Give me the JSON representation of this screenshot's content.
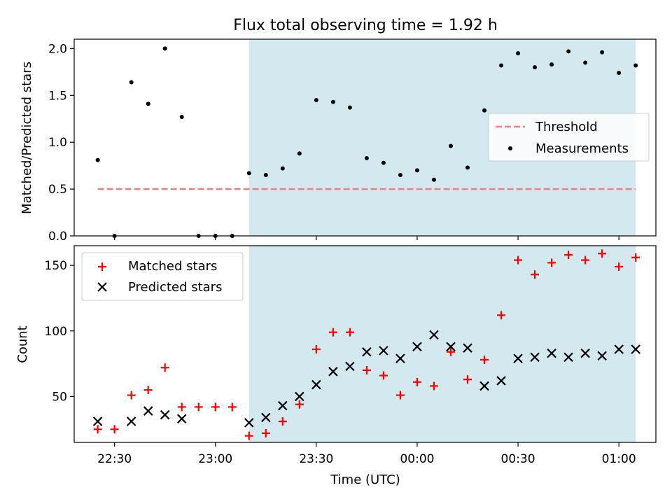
{
  "title": "Flux total observing time = 1.92 h",
  "chart_data": [
    {
      "type": "scatter",
      "panel": "top",
      "ylabel": "Matched/Predicted stars",
      "ylim": [
        0,
        2.1
      ],
      "yticks": [
        0.0,
        0.5,
        1.0,
        1.5,
        2.0
      ],
      "yticklabels": [
        "0.0",
        "0.5",
        "1.0",
        "1.5",
        "2.0"
      ],
      "shaded_x_range": [
        "23:10",
        "01:05"
      ],
      "shade_color": "#d3e9ef",
      "legend_position": "center-right",
      "series": [
        {
          "name": "Threshold",
          "kind": "dashed-line",
          "color": "#f08080",
          "x": [
            "22:25",
            "01:05"
          ],
          "y": [
            0.5,
            0.5
          ]
        },
        {
          "name": "Measurements",
          "kind": "points",
          "color": "#000000",
          "x": [
            "22:25",
            "22:30",
            "22:35",
            "22:40",
            "22:45",
            "22:50",
            "22:55",
            "23:00",
            "23:05",
            "23:10",
            "23:15",
            "23:20",
            "23:25",
            "23:30",
            "23:35",
            "23:40",
            "23:45",
            "23:50",
            "23:55",
            "00:00",
            "00:05",
            "00:10",
            "00:15",
            "00:20",
            "00:25",
            "00:30",
            "00:35",
            "00:40",
            "00:45",
            "00:50",
            "00:55",
            "01:00",
            "01:05"
          ],
          "y": [
            0.81,
            0.0,
            1.64,
            1.41,
            2.0,
            1.27,
            0.0,
            0.0,
            0.0,
            0.67,
            0.65,
            0.72,
            0.88,
            1.45,
            1.43,
            1.37,
            0.83,
            0.78,
            0.65,
            0.7,
            0.6,
            0.96,
            0.73,
            1.34,
            1.82,
            1.95,
            1.8,
            1.83,
            1.97,
            1.85,
            1.96,
            1.74,
            1.82
          ]
        }
      ]
    },
    {
      "type": "scatter",
      "panel": "bottom",
      "xlabel": "Time (UTC)",
      "ylabel": "Count",
      "ylim": [
        15,
        165
      ],
      "yticks": [
        50,
        100,
        150
      ],
      "yticklabels": [
        "50",
        "100",
        "150"
      ],
      "xlim": [
        "22:18",
        "01:11"
      ],
      "xticks": [
        "22:30",
        "23:00",
        "23:30",
        "00:00",
        "00:30",
        "01:00"
      ],
      "xticklabels": [
        "22:30",
        "23:00",
        "23:30",
        "00:00",
        "00:30",
        "01:00"
      ],
      "shaded_x_range": [
        "23:10",
        "01:05"
      ],
      "shade_color": "#d3e9ef",
      "legend_position": "upper-left",
      "series": [
        {
          "name": "Matched stars",
          "marker": "plus",
          "color": "#ff0000",
          "x": [
            "22:25",
            "22:30",
            "22:35",
            "22:40",
            "22:45",
            "22:50",
            "22:55",
            "23:00",
            "23:05",
            "23:10",
            "23:15",
            "23:20",
            "23:25",
            "23:30",
            "23:35",
            "23:40",
            "23:45",
            "23:50",
            "23:55",
            "00:00",
            "00:05",
            "00:10",
            "00:15",
            "00:20",
            "00:25",
            "00:30",
            "00:35",
            "00:40",
            "00:45",
            "00:50",
            "00:55",
            "01:00",
            "01:05"
          ],
          "y": [
            25,
            25,
            51,
            55,
            72,
            42,
            42,
            42,
            42,
            20,
            22,
            31,
            44,
            86,
            99,
            99,
            70,
            66,
            51,
            61,
            58,
            84,
            63,
            78,
            112,
            154,
            143,
            152,
            158,
            154,
            159,
            149,
            156
          ]
        },
        {
          "name": "Predicted stars",
          "marker": "x",
          "color": "#000000",
          "x": [
            "22:25",
            "22:35",
            "22:40",
            "22:45",
            "22:50",
            "23:10",
            "23:15",
            "23:20",
            "23:25",
            "23:30",
            "23:35",
            "23:40",
            "23:45",
            "23:50",
            "23:55",
            "00:00",
            "00:05",
            "00:10",
            "00:15",
            "00:20",
            "00:25",
            "00:30",
            "00:35",
            "00:40",
            "00:45",
            "00:50",
            "00:55",
            "01:00",
            "01:05"
          ],
          "y": [
            31,
            31,
            39,
            36,
            33,
            30,
            34,
            43,
            50,
            59,
            69,
            73,
            84,
            85,
            79,
            88,
            97,
            88,
            87,
            58,
            62,
            79,
            80,
            83,
            80,
            83,
            81,
            86,
            86
          ]
        }
      ]
    }
  ]
}
